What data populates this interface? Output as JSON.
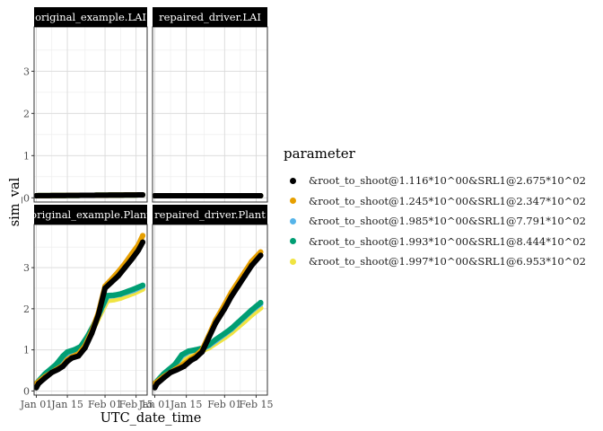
{
  "chart_data": {
    "type": "scatter",
    "facet_layout": "2x2",
    "xlabel": "UTC_date_time",
    "ylabel": "sim_val",
    "x_ticks": [
      "Jan 01",
      "Jan 15",
      "Feb 01",
      "Feb 15"
    ],
    "x_range": [
      "2021-12-31",
      "2022-02-20"
    ],
    "y_ticks": [
      0,
      1,
      2,
      3
    ],
    "ylim": [
      -0.1,
      4.05
    ],
    "grid": true,
    "legend_position": "right",
    "legend_title": "parameter",
    "series_names": [
      "&root_to_shoot@1.116*10^00&SRL1@2.675*10^02",
      "&root_to_shoot@1.245*10^00&SRL1@2.347*10^02",
      "&root_to_shoot@1.985*10^00&SRL1@7.791*10^02",
      "&root_to_shoot@1.993*10^00&SRL1@8.444*10^02",
      "&root_to_shoot@1.997*10^00&SRL1@6.953*10^02"
    ],
    "colors": [
      "#000000",
      "#E69F00",
      "#56B4E9",
      "#009E73",
      "#F0E442"
    ],
    "panels": [
      {
        "title": "original_example.LAI",
        "series": [
          {
            "x": [
              "2022-01-01",
              "2022-02-18"
            ],
            "y": [
              0.05,
              0.07
            ]
          },
          {
            "x": [
              "2022-01-01",
              "2022-02-18"
            ],
            "y": [
              0.05,
              0.07
            ]
          },
          {
            "x": [
              "2022-01-01",
              "2022-02-18"
            ],
            "y": [
              0.05,
              0.07
            ]
          },
          {
            "x": [
              "2022-01-01",
              "2022-02-18"
            ],
            "y": [
              0.05,
              0.07
            ]
          },
          {
            "x": [
              "2022-01-01",
              "2022-02-18"
            ],
            "y": [
              0.05,
              0.07
            ]
          }
        ]
      },
      {
        "title": "repaired_driver.LAI",
        "series": [
          {
            "x": [
              "2022-01-01",
              "2022-02-17"
            ],
            "y": [
              0.05,
              0.05
            ]
          },
          {
            "x": [
              "2022-01-01",
              "2022-02-17"
            ],
            "y": [
              0.05,
              0.05
            ]
          },
          {
            "x": [
              "2022-01-01",
              "2022-02-17"
            ],
            "y": [
              0.05,
              0.05
            ]
          },
          {
            "x": [
              "2022-01-01",
              "2022-02-17"
            ],
            "y": [
              0.05,
              0.05
            ]
          },
          {
            "x": [
              "2022-01-01",
              "2022-02-17"
            ],
            "y": [
              0.05,
              0.05
            ]
          }
        ]
      },
      {
        "title": "original_example.Plant",
        "series": [
          {
            "x": [
              "2022-01-01",
              "2022-01-02",
              "2022-01-05",
              "2022-01-08",
              "2022-01-11",
              "2022-01-13",
              "2022-01-15",
              "2022-01-17",
              "2022-01-20",
              "2022-01-23",
              "2022-01-26",
              "2022-01-29",
              "2022-02-01",
              "2022-02-04",
              "2022-02-07",
              "2022-02-10",
              "2022-02-13",
              "2022-02-16",
              "2022-02-18"
            ],
            "y": [
              0.08,
              0.18,
              0.32,
              0.45,
              0.53,
              0.6,
              0.72,
              0.8,
              0.85,
              1.05,
              1.4,
              1.85,
              2.5,
              2.65,
              2.8,
              3.0,
              3.2,
              3.42,
              3.62
            ]
          },
          {
            "x": [
              "2022-01-01",
              "2022-01-05",
              "2022-01-10",
              "2022-01-13",
              "2022-01-15",
              "2022-01-17",
              "2022-01-20",
              "2022-01-23",
              "2022-01-26",
              "2022-01-29",
              "2022-02-01",
              "2022-02-04",
              "2022-02-07",
              "2022-02-10",
              "2022-02-13",
              "2022-02-16",
              "2022-02-18"
            ],
            "y": [
              0.18,
              0.35,
              0.52,
              0.62,
              0.76,
              0.83,
              0.9,
              1.1,
              1.45,
              1.9,
              2.55,
              2.72,
              2.9,
              3.1,
              3.33,
              3.55,
              3.78
            ]
          },
          {
            "x": [
              "2022-01-01",
              "2022-01-05",
              "2022-01-10",
              "2022-01-13",
              "2022-01-15",
              "2022-01-18",
              "2022-01-21",
              "2022-01-24",
              "2022-01-27",
              "2022-01-30",
              "2022-02-02",
              "2022-02-05",
              "2022-02-08",
              "2022-02-11",
              "2022-02-14",
              "2022-02-18"
            ],
            "y": [
              0.18,
              0.4,
              0.6,
              0.78,
              0.92,
              0.98,
              1.05,
              1.3,
              1.6,
              1.95,
              2.3,
              2.32,
              2.35,
              2.4,
              2.45,
              2.55
            ]
          },
          {
            "x": [
              "2022-01-01",
              "2022-01-05",
              "2022-01-10",
              "2022-01-13",
              "2022-01-15",
              "2022-01-18",
              "2022-01-21",
              "2022-01-24",
              "2022-01-27",
              "2022-01-30",
              "2022-02-02",
              "2022-02-05",
              "2022-02-08",
              "2022-02-11",
              "2022-02-14",
              "2022-02-18"
            ],
            "y": [
              0.18,
              0.42,
              0.65,
              0.85,
              0.95,
              1.0,
              1.08,
              1.32,
              1.62,
              1.97,
              2.32,
              2.33,
              2.36,
              2.42,
              2.48,
              2.57
            ]
          },
          {
            "x": [
              "2022-01-01",
              "2022-01-05",
              "2022-01-10",
              "2022-01-13",
              "2022-01-15",
              "2022-01-18",
              "2022-01-21",
              "2022-01-24",
              "2022-01-27",
              "2022-01-30",
              "2022-02-02",
              "2022-02-05",
              "2022-02-08",
              "2022-02-11",
              "2022-02-14",
              "2022-02-18"
            ],
            "y": [
              0.15,
              0.38,
              0.58,
              0.75,
              0.88,
              0.95,
              1.02,
              1.25,
              1.55,
              1.88,
              2.2,
              2.22,
              2.26,
              2.32,
              2.38,
              2.48
            ]
          }
        ]
      },
      {
        "title": "repaired_driver.Plant",
        "series": [
          {
            "x": [
              "2022-01-01",
              "2022-01-02",
              "2022-01-05",
              "2022-01-08",
              "2022-01-11",
              "2022-01-14",
              "2022-01-17",
              "2022-01-19",
              "2022-01-22",
              "2022-01-25",
              "2022-01-28",
              "2022-02-01",
              "2022-02-04",
              "2022-02-07",
              "2022-02-10",
              "2022-02-13",
              "2022-02-17"
            ],
            "y": [
              0.08,
              0.18,
              0.32,
              0.45,
              0.52,
              0.6,
              0.74,
              0.8,
              0.95,
              1.3,
              1.65,
              2.0,
              2.3,
              2.55,
              2.8,
              3.05,
              3.3
            ]
          },
          {
            "x": [
              "2022-01-01",
              "2022-01-05",
              "2022-01-10",
              "2022-01-14",
              "2022-01-17",
              "2022-01-19",
              "2022-01-22",
              "2022-01-25",
              "2022-01-28",
              "2022-02-01",
              "2022-02-04",
              "2022-02-07",
              "2022-02-10",
              "2022-02-13",
              "2022-02-17"
            ],
            "y": [
              0.18,
              0.35,
              0.52,
              0.66,
              0.78,
              0.85,
              1.0,
              1.35,
              1.72,
              2.1,
              2.4,
              2.65,
              2.9,
              3.15,
              3.38
            ]
          },
          {
            "x": [
              "2022-01-01",
              "2022-01-05",
              "2022-01-10",
              "2022-01-13",
              "2022-01-16",
              "2022-01-19",
              "2022-01-22",
              "2022-01-25",
              "2022-01-28",
              "2022-02-01",
              "2022-02-04",
              "2022-02-07",
              "2022-02-10",
              "2022-02-13",
              "2022-02-17"
            ],
            "y": [
              0.18,
              0.4,
              0.62,
              0.85,
              0.95,
              1.0,
              1.02,
              1.1,
              1.22,
              1.38,
              1.5,
              1.65,
              1.8,
              1.95,
              2.12
            ]
          },
          {
            "x": [
              "2022-01-01",
              "2022-01-05",
              "2022-01-10",
              "2022-01-13",
              "2022-01-16",
              "2022-01-19",
              "2022-01-22",
              "2022-01-25",
              "2022-01-28",
              "2022-02-01",
              "2022-02-04",
              "2022-02-07",
              "2022-02-10",
              "2022-02-13",
              "2022-02-17"
            ],
            "y": [
              0.18,
              0.42,
              0.65,
              0.88,
              0.97,
              1.0,
              1.04,
              1.12,
              1.25,
              1.4,
              1.52,
              1.67,
              1.82,
              1.97,
              2.15
            ]
          },
          {
            "x": [
              "2022-01-01",
              "2022-01-05",
              "2022-01-10",
              "2022-01-13",
              "2022-01-16",
              "2022-01-19",
              "2022-01-22",
              "2022-01-25",
              "2022-01-28",
              "2022-02-01",
              "2022-02-04",
              "2022-02-07",
              "2022-02-10",
              "2022-02-13",
              "2022-02-17"
            ],
            "y": [
              0.15,
              0.38,
              0.58,
              0.78,
              0.9,
              0.95,
              0.98,
              1.05,
              1.16,
              1.3,
              1.42,
              1.56,
              1.7,
              1.85,
              2.02
            ]
          }
        ]
      }
    ]
  }
}
